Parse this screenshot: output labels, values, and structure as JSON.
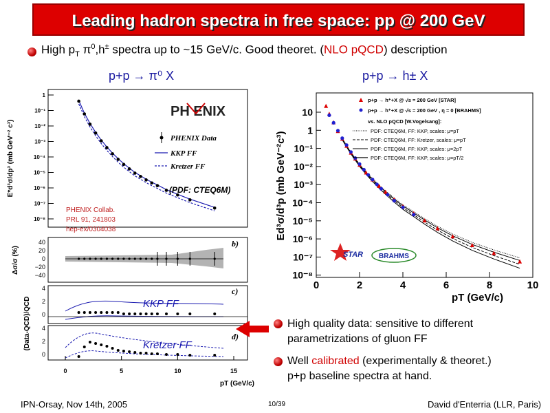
{
  "slide": {
    "title": "Leading hadron spectra in free space: pp @ 200 GeV",
    "intro": {
      "pre": "High p",
      "sub_T": "T",
      "mid": " π",
      "sup0": "0",
      "mid2": ",h",
      "sup_pm": "±",
      "mid3": " spectra up to ~15 GeV/c. Good theoret. (",
      "highlight": "NLO pQCD",
      "post": ") description"
    },
    "left_header": "p+p → π⁰ X",
    "right_header": "p+p → h± X",
    "bullets": [
      {
        "text": "High quality data: sensitive to different parametrizations of gluon FF",
        "line1": "High quality data: sensitive to different",
        "line2": "parametrizations of gluon FF"
      },
      {
        "pre": "Well ",
        "highlight": "calibrated",
        "post": " (experimentally & theoret.)",
        "line2": "p+p baseline spectra at hand."
      }
    ],
    "footer": {
      "left": "IPN-Orsay, Nov 14th, 2005",
      "center": "10/39",
      "right": "David d'Enterria (LLR, Paris)"
    }
  },
  "left_panel": {
    "logo": "PH ENIX",
    "legend": [
      "PHENIX Data",
      "KKP FF",
      "Kretzer FF"
    ],
    "pdf_label": "(PDF: CTEQ6M)",
    "citation": [
      "PHENIX Collab.",
      "PRL 91, 241803",
      "hep-ex/0304038"
    ],
    "ylabel_top": "E*d³σ/dp³ (mb GeV⁻² c³)",
    "ylabel_mid": "Δσ/σ (%)",
    "ylabel_bot": "(Data-QCD)/QCD",
    "yticks_top": [
      "1",
      "10⁻¹",
      "10⁻²",
      "10⁻³",
      "10⁻⁴",
      "10⁻⁵",
      "10⁻⁶",
      "10⁻⁷",
      "10⁻⁸"
    ],
    "yticks_mid": [
      "40",
      "20",
      "0",
      "−20",
      "−40"
    ],
    "yticks_c": [
      "4",
      "2",
      "0"
    ],
    "yticks_d": [
      "4",
      "2",
      "0"
    ],
    "xticks": [
      "0",
      "5",
      "10",
      "15"
    ],
    "xlabel": "pT (GeV/c)",
    "panel_labels": [
      "b)",
      "c)",
      "d)"
    ],
    "kkp_label": "KKP  FF",
    "kretzer_label": "Kretzer FF"
  },
  "right_panel": {
    "legend": [
      "p+p → h⁺+X @ √s = 200 GeV [STAR]",
      "p+p → h⁺+X @ √s = 200 GeV , η = 0 [BRAHMS]",
      "vs. NLO pQCD [W.Vogelsang]:",
      "PDF: CTEQ6M, FF: KKP, scales: μ=pT",
      "PDF: CTEQ6M, FF: Kretzer, scales: μ=pT",
      "PDF: CTEQ6M, FF: KKP, scales: μ=2pT",
      "PDF: CTEQ6M, FF: KKP, scales: μ=pT/2"
    ],
    "ylabel": "Ed³σ/d³p (mb GeV⁻²c³)",
    "yticks": [
      "10",
      "1",
      "10⁻¹",
      "10⁻²",
      "10⁻³",
      "10⁻⁴",
      "10⁻⁵",
      "10⁻⁶",
      "10⁻⁷",
      "10⁻⁸"
    ],
    "xticks": [
      "0",
      "2",
      "4",
      "6",
      "8",
      "10"
    ],
    "xlabel": "pT (GeV/c)",
    "logos": [
      "STAR",
      "BRAHMS"
    ]
  },
  "chart_data": [
    {
      "type": "scatter",
      "title": "p+p → π⁰ X",
      "xlabel": "pT (GeV/c)",
      "ylabel": "E*d³σ/dp³ (mb GeV⁻² c³)",
      "log_y": true,
      "xlim": [
        0,
        15
      ],
      "ylim": [
        1e-08,
        1
      ],
      "series": [
        {
          "name": "PHENIX Data",
          "x": [
            1.2,
            1.7,
            2.2,
            2.7,
            3.2,
            3.7,
            4.2,
            4.7,
            5.2,
            5.7,
            6.2,
            6.7,
            7.2,
            7.7,
            8.2,
            9.0,
            10.0,
            11.1,
            13.3
          ],
          "y": [
            0.4,
            0.06,
            0.013,
            0.0035,
            0.0011,
            0.0004,
            0.00016,
            7e-05,
            3.3e-05,
            1.7e-05,
            9e-06,
            5.5e-06,
            3.3e-06,
            2.1e-06,
            1.4e-06,
            7e-07,
            3.5e-07,
            1.7e-07,
            5e-08
          ]
        }
      ]
    },
    {
      "type": "scatter",
      "title": "p+p → h± X",
      "xlabel": "pT (GeV/c)",
      "ylabel": "Ed³σ/d³p (mb GeV⁻²c³)",
      "log_y": true,
      "xlim": [
        0,
        10
      ],
      "ylim": [
        1e-08,
        10
      ],
      "series": [
        {
          "name": "p+p → h⁺+X @ √s = 200 GeV [STAR]",
          "x": [
            0.45,
            0.6,
            0.8,
            1.0,
            1.2,
            1.4,
            1.6,
            1.8,
            2.0,
            2.3,
            2.6,
            2.9,
            3.2,
            3.6,
            4.0,
            4.5,
            5.0,
            5.6,
            6.3,
            7.2,
            8.2,
            9.4
          ],
          "y": [
            20,
            8,
            3,
            1.1,
            0.45,
            0.2,
            0.09,
            0.045,
            0.022,
            0.009,
            0.004,
            0.0019,
            0.00095,
            0.0004,
            0.00018,
            8e-05,
            3.5e-05,
            1.4e-05,
            5.5e-06,
            2e-06,
            8e-07,
            3e-07
          ]
        },
        {
          "name": "p+p → h⁺+X @ √s = 200 GeV , η = 0 [BRAHMS]",
          "x": [
            0.6,
            0.8,
            1.0,
            1.2,
            1.4,
            1.6,
            1.8,
            2.0,
            2.2,
            2.4,
            2.6,
            2.8,
            3.0,
            3.3,
            3.6,
            4.0,
            4.5
          ],
          "y": [
            6,
            2.5,
            1.0,
            0.42,
            0.19,
            0.085,
            0.042,
            0.021,
            0.011,
            0.006,
            0.0035,
            0.002,
            0.0012,
            0.0006,
            0.0003,
            0.00014,
            6e-05
          ]
        }
      ]
    }
  ]
}
